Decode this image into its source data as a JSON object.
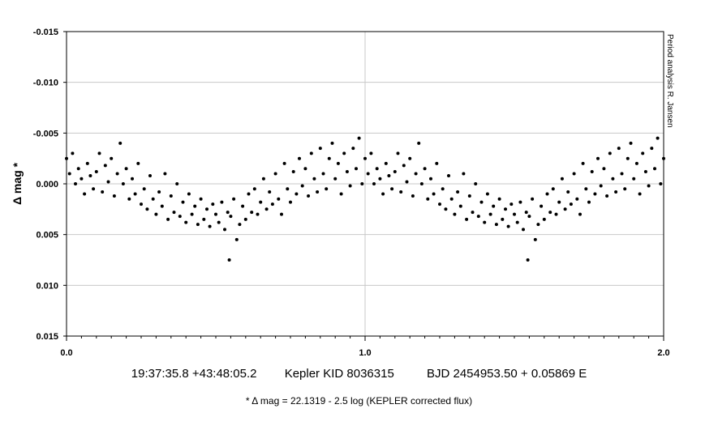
{
  "chart_data": {
    "type": "scatter",
    "ylabel": "Δ mag *",
    "side_note": "Period analysis  R. Jansen",
    "xlim": [
      0.0,
      2.0
    ],
    "ylim": [
      -0.015,
      0.015
    ],
    "y_inverted": true,
    "x_ticks": [
      "0.0",
      "1.0",
      "2.0"
    ],
    "x_tick_values": [
      0.0,
      1.0,
      2.0
    ],
    "y_ticks": [
      "-0.015",
      "-0.010",
      "-0.005",
      "0.000",
      "0.005",
      "0.010",
      "0.015"
    ],
    "y_tick_values": [
      -0.015,
      -0.01,
      -0.005,
      0.0,
      0.005,
      0.01,
      0.015
    ],
    "grid": true,
    "marker_color": "#000000",
    "series": [
      {
        "points": [
          [
            0.0,
            -0.0025
          ],
          [
            0.01,
            -0.001
          ],
          [
            0.02,
            -0.003
          ],
          [
            0.03,
            0.0
          ],
          [
            0.04,
            -0.0015
          ],
          [
            0.05,
            -0.0005
          ],
          [
            0.06,
            0.001
          ],
          [
            0.07,
            -0.002
          ],
          [
            0.08,
            -0.0008
          ],
          [
            0.09,
            0.0005
          ],
          [
            0.1,
            -0.0012
          ],
          [
            0.11,
            -0.003
          ],
          [
            0.12,
            0.0008
          ],
          [
            0.13,
            -0.0018
          ],
          [
            0.14,
            -0.0002
          ],
          [
            0.15,
            -0.0025
          ],
          [
            0.16,
            0.0012
          ],
          [
            0.17,
            -0.001
          ],
          [
            0.18,
            -0.004
          ],
          [
            0.19,
            0.0
          ],
          [
            0.2,
            -0.0015
          ],
          [
            0.21,
            0.0015
          ],
          [
            0.22,
            -0.0005
          ],
          [
            0.23,
            0.001
          ],
          [
            0.24,
            -0.002
          ],
          [
            0.25,
            0.002
          ],
          [
            0.26,
            0.0005
          ],
          [
            0.27,
            0.0025
          ],
          [
            0.28,
            -0.0008
          ],
          [
            0.29,
            0.0015
          ],
          [
            0.3,
            0.003
          ],
          [
            0.31,
            0.0008
          ],
          [
            0.32,
            0.0022
          ],
          [
            0.33,
            -0.001
          ],
          [
            0.34,
            0.0035
          ],
          [
            0.35,
            0.0012
          ],
          [
            0.36,
            0.0028
          ],
          [
            0.37,
            0.0
          ],
          [
            0.38,
            0.0032
          ],
          [
            0.39,
            0.0018
          ],
          [
            0.4,
            0.0038
          ],
          [
            0.41,
            0.001
          ],
          [
            0.42,
            0.003
          ],
          [
            0.43,
            0.0022
          ],
          [
            0.44,
            0.004
          ],
          [
            0.45,
            0.0015
          ],
          [
            0.46,
            0.0035
          ],
          [
            0.47,
            0.0025
          ],
          [
            0.48,
            0.0042
          ],
          [
            0.49,
            0.002
          ],
          [
            0.5,
            0.003
          ],
          [
            0.51,
            0.0038
          ],
          [
            0.52,
            0.0018
          ],
          [
            0.53,
            0.0045
          ],
          [
            0.54,
            0.0028
          ],
          [
            0.545,
            0.0075
          ],
          [
            0.55,
            0.0032
          ],
          [
            0.56,
            0.0015
          ],
          [
            0.57,
            0.0055
          ],
          [
            0.58,
            0.004
          ],
          [
            0.59,
            0.0022
          ],
          [
            0.6,
            0.0035
          ],
          [
            0.61,
            0.001
          ],
          [
            0.62,
            0.0028
          ],
          [
            0.63,
            0.0005
          ],
          [
            0.64,
            0.003
          ],
          [
            0.65,
            0.0018
          ],
          [
            0.66,
            -0.0005
          ],
          [
            0.67,
            0.0025
          ],
          [
            0.68,
            0.0008
          ],
          [
            0.69,
            0.002
          ],
          [
            0.7,
            -0.001
          ],
          [
            0.71,
            0.0015
          ],
          [
            0.72,
            0.003
          ],
          [
            0.73,
            -0.002
          ],
          [
            0.74,
            0.0005
          ],
          [
            0.75,
            0.0018
          ],
          [
            0.76,
            -0.0012
          ],
          [
            0.77,
            0.001
          ],
          [
            0.78,
            -0.0025
          ],
          [
            0.79,
            0.0002
          ],
          [
            0.8,
            -0.0015
          ],
          [
            0.81,
            0.0012
          ],
          [
            0.82,
            -0.003
          ],
          [
            0.83,
            -0.0005
          ],
          [
            0.84,
            0.0008
          ],
          [
            0.85,
            -0.0035
          ],
          [
            0.86,
            -0.001
          ],
          [
            0.87,
            0.0005
          ],
          [
            0.88,
            -0.0025
          ],
          [
            0.89,
            -0.004
          ],
          [
            0.9,
            -0.0005
          ],
          [
            0.91,
            -0.002
          ],
          [
            0.92,
            0.001
          ],
          [
            0.93,
            -0.003
          ],
          [
            0.94,
            -0.0012
          ],
          [
            0.95,
            0.0002
          ],
          [
            0.96,
            -0.0035
          ],
          [
            0.97,
            -0.0015
          ],
          [
            0.98,
            -0.0045
          ],
          [
            0.99,
            0.0
          ],
          [
            1.0,
            -0.0025
          ],
          [
            1.01,
            -0.001
          ],
          [
            1.02,
            -0.003
          ],
          [
            1.03,
            0.0
          ],
          [
            1.04,
            -0.0015
          ],
          [
            1.05,
            -0.0005
          ],
          [
            1.06,
            0.001
          ],
          [
            1.07,
            -0.002
          ],
          [
            1.08,
            -0.0008
          ],
          [
            1.09,
            0.0005
          ],
          [
            1.1,
            -0.0012
          ],
          [
            1.11,
            -0.003
          ],
          [
            1.12,
            0.0008
          ],
          [
            1.13,
            -0.0018
          ],
          [
            1.14,
            -0.0002
          ],
          [
            1.15,
            -0.0025
          ],
          [
            1.16,
            0.0012
          ],
          [
            1.17,
            -0.001
          ],
          [
            1.18,
            -0.004
          ],
          [
            1.19,
            0.0
          ],
          [
            1.2,
            -0.0015
          ],
          [
            1.21,
            0.0015
          ],
          [
            1.22,
            -0.0005
          ],
          [
            1.23,
            0.001
          ],
          [
            1.24,
            -0.002
          ],
          [
            1.25,
            0.002
          ],
          [
            1.26,
            0.0005
          ],
          [
            1.27,
            0.0025
          ],
          [
            1.28,
            -0.0008
          ],
          [
            1.29,
            0.0015
          ],
          [
            1.3,
            0.003
          ],
          [
            1.31,
            0.0008
          ],
          [
            1.32,
            0.0022
          ],
          [
            1.33,
            -0.001
          ],
          [
            1.34,
            0.0035
          ],
          [
            1.35,
            0.0012
          ],
          [
            1.36,
            0.0028
          ],
          [
            1.37,
            0.0
          ],
          [
            1.38,
            0.0032
          ],
          [
            1.39,
            0.0018
          ],
          [
            1.4,
            0.0038
          ],
          [
            1.41,
            0.001
          ],
          [
            1.42,
            0.003
          ],
          [
            1.43,
            0.0022
          ],
          [
            1.44,
            0.004
          ],
          [
            1.45,
            0.0015
          ],
          [
            1.46,
            0.0035
          ],
          [
            1.47,
            0.0025
          ],
          [
            1.48,
            0.0042
          ],
          [
            1.49,
            0.002
          ],
          [
            1.5,
            0.003
          ],
          [
            1.51,
            0.0038
          ],
          [
            1.52,
            0.0018
          ],
          [
            1.53,
            0.0045
          ],
          [
            1.54,
            0.0028
          ],
          [
            1.545,
            0.0075
          ],
          [
            1.55,
            0.0032
          ],
          [
            1.56,
            0.0015
          ],
          [
            1.57,
            0.0055
          ],
          [
            1.58,
            0.004
          ],
          [
            1.59,
            0.0022
          ],
          [
            1.6,
            0.0035
          ],
          [
            1.61,
            0.001
          ],
          [
            1.62,
            0.0028
          ],
          [
            1.63,
            0.0005
          ],
          [
            1.64,
            0.003
          ],
          [
            1.65,
            0.0018
          ],
          [
            1.66,
            -0.0005
          ],
          [
            1.67,
            0.0025
          ],
          [
            1.68,
            0.0008
          ],
          [
            1.69,
            0.002
          ],
          [
            1.7,
            -0.001
          ],
          [
            1.71,
            0.0015
          ],
          [
            1.72,
            0.003
          ],
          [
            1.73,
            -0.002
          ],
          [
            1.74,
            0.0005
          ],
          [
            1.75,
            0.0018
          ],
          [
            1.76,
            -0.0012
          ],
          [
            1.77,
            0.001
          ],
          [
            1.78,
            -0.0025
          ],
          [
            1.79,
            0.0002
          ],
          [
            1.8,
            -0.0015
          ],
          [
            1.81,
            0.0012
          ],
          [
            1.82,
            -0.003
          ],
          [
            1.83,
            -0.0005
          ],
          [
            1.84,
            0.0008
          ],
          [
            1.85,
            -0.0035
          ],
          [
            1.86,
            -0.001
          ],
          [
            1.87,
            0.0005
          ],
          [
            1.88,
            -0.0025
          ],
          [
            1.89,
            -0.004
          ],
          [
            1.9,
            -0.0005
          ],
          [
            1.91,
            -0.002
          ],
          [
            1.92,
            0.001
          ],
          [
            1.93,
            -0.003
          ],
          [
            1.94,
            -0.0012
          ],
          [
            1.95,
            0.0002
          ],
          [
            1.96,
            -0.0035
          ],
          [
            1.97,
            -0.0015
          ],
          [
            1.98,
            -0.0045
          ],
          [
            1.99,
            0.0
          ],
          [
            2.0,
            -0.0025
          ]
        ]
      }
    ]
  },
  "caption": {
    "coords": "19:37:35.8 +43:48:05.2",
    "kid": "Kepler KID 8036315",
    "ephemeris": "BJD 2454953.50 + 0.05869 E",
    "note": "* Δ mag = 22.1319 - 2.5 log (KEPLER corrected flux)"
  }
}
